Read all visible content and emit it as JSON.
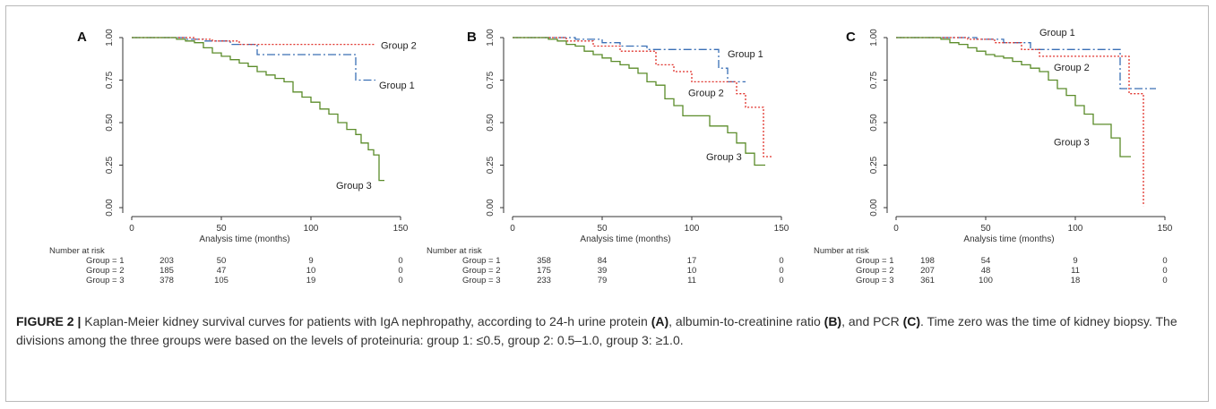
{
  "colors": {
    "group1": "#3a6fb5",
    "group2": "#e0322b",
    "group3": "#5b8c2a",
    "axis": "#333333",
    "frame": "#b9b9b9"
  },
  "chart_data": [
    {
      "type": "line",
      "panel": "A",
      "xlabel": "Analysis time (months)",
      "ylabel": "",
      "xlim": [
        0,
        150
      ],
      "ylim": [
        0,
        1
      ],
      "x_ticks": [
        "0",
        "50",
        "100",
        "150"
      ],
      "y_ticks": [
        "0.00",
        "0.25",
        "0.50",
        "0.75",
        "1.00"
      ],
      "series": [
        {
          "name": "Group 1",
          "style": "dashdot",
          "steps": [
            [
              0,
              1
            ],
            [
              20,
              1
            ],
            [
              30,
              0.99
            ],
            [
              40,
              0.98
            ],
            [
              55,
              0.96
            ],
            [
              70,
              0.9
            ],
            [
              125,
              0.75
            ],
            [
              136,
              0.75
            ]
          ]
        },
        {
          "name": "Group 2",
          "style": "dotted",
          "steps": [
            [
              0,
              1
            ],
            [
              25,
              1
            ],
            [
              35,
              0.99
            ],
            [
              45,
              0.98
            ],
            [
              60,
              0.96
            ],
            [
              136,
              0.96
            ]
          ]
        },
        {
          "name": "Group 3",
          "style": "solid",
          "steps": [
            [
              0,
              1
            ],
            [
              20,
              1
            ],
            [
              25,
              0.99
            ],
            [
              30,
              0.98
            ],
            [
              35,
              0.97
            ],
            [
              40,
              0.94
            ],
            [
              45,
              0.91
            ],
            [
              50,
              0.89
            ],
            [
              55,
              0.87
            ],
            [
              60,
              0.85
            ],
            [
              65,
              0.83
            ],
            [
              70,
              0.8
            ],
            [
              75,
              0.78
            ],
            [
              80,
              0.76
            ],
            [
              85,
              0.74
            ],
            [
              90,
              0.68
            ],
            [
              95,
              0.65
            ],
            [
              100,
              0.62
            ],
            [
              105,
              0.58
            ],
            [
              110,
              0.55
            ],
            [
              115,
              0.5
            ],
            [
              120,
              0.46
            ],
            [
              125,
              0.43
            ],
            [
              128,
              0.38
            ],
            [
              132,
              0.34
            ],
            [
              135,
              0.31
            ],
            [
              138,
              0.16
            ],
            [
              141,
              0.16
            ]
          ]
        }
      ],
      "curve_labels": [
        {
          "text": "Group 2",
          "x": 139,
          "y": 0.935
        },
        {
          "text": "Group 1",
          "x": 138,
          "y": 0.7
        },
        {
          "text": "Group 3",
          "x": 114,
          "y": 0.11
        }
      ],
      "risk_table": {
        "title": "Number at risk",
        "rows": [
          {
            "label": "Group = 1",
            "values": [
              "203",
              "50",
              "9",
              "0"
            ]
          },
          {
            "label": "Group = 2",
            "values": [
              "185",
              "47",
              "10",
              "0"
            ]
          },
          {
            "label": "Group = 3",
            "values": [
              "378",
              "105",
              "19",
              "0"
            ]
          }
        ]
      }
    },
    {
      "type": "line",
      "panel": "B",
      "xlabel": "Analysis time (months)",
      "ylabel": "",
      "xlim": [
        0,
        150
      ],
      "ylim": [
        0,
        1
      ],
      "x_ticks": [
        "0",
        "50",
        "100",
        "150"
      ],
      "y_ticks": [
        "0.00",
        "0.25",
        "0.50",
        "0.75",
        "1.00"
      ],
      "series": [
        {
          "name": "Group 1",
          "style": "dashdot",
          "steps": [
            [
              0,
              1
            ],
            [
              20,
              1
            ],
            [
              35,
              0.99
            ],
            [
              50,
              0.97
            ],
            [
              60,
              0.95
            ],
            [
              75,
              0.93
            ],
            [
              115,
              0.82
            ],
            [
              120,
              0.74
            ],
            [
              130,
              0.74
            ]
          ]
        },
        {
          "name": "Group 2",
          "style": "dotted",
          "steps": [
            [
              0,
              1
            ],
            [
              15,
              1
            ],
            [
              30,
              0.98
            ],
            [
              45,
              0.95
            ],
            [
              60,
              0.92
            ],
            [
              80,
              0.84
            ],
            [
              90,
              0.8
            ],
            [
              100,
              0.74
            ],
            [
              125,
              0.67
            ],
            [
              130,
              0.59
            ],
            [
              140,
              0.3
            ],
            [
              145,
              0.3
            ]
          ]
        },
        {
          "name": "Group 3",
          "style": "solid",
          "steps": [
            [
              0,
              1
            ],
            [
              15,
              1
            ],
            [
              20,
              0.99
            ],
            [
              25,
              0.98
            ],
            [
              30,
              0.96
            ],
            [
              35,
              0.95
            ],
            [
              40,
              0.92
            ],
            [
              45,
              0.9
            ],
            [
              50,
              0.88
            ],
            [
              55,
              0.86
            ],
            [
              60,
              0.84
            ],
            [
              65,
              0.82
            ],
            [
              70,
              0.79
            ],
            [
              75,
              0.74
            ],
            [
              80,
              0.72
            ],
            [
              85,
              0.64
            ],
            [
              90,
              0.6
            ],
            [
              95,
              0.54
            ],
            [
              110,
              0.48
            ],
            [
              120,
              0.44
            ],
            [
              125,
              0.38
            ],
            [
              130,
              0.32
            ],
            [
              135,
              0.25
            ],
            [
              141,
              0.25
            ]
          ]
        }
      ],
      "curve_labels": [
        {
          "text": "Group 1",
          "x": 120,
          "y": 0.885
        },
        {
          "text": "Group 2",
          "x": 98,
          "y": 0.655
        },
        {
          "text": "Group 3",
          "x": 108,
          "y": 0.28
        }
      ],
      "risk_table": {
        "title": "Number at risk",
        "rows": [
          {
            "label": "Group = 1",
            "values": [
              "358",
              "84",
              "17",
              "0"
            ]
          },
          {
            "label": "Group = 2",
            "values": [
              "175",
              "39",
              "10",
              "0"
            ]
          },
          {
            "label": "Group = 3",
            "values": [
              "233",
              "79",
              "11",
              "0"
            ]
          }
        ]
      }
    },
    {
      "type": "line",
      "panel": "C",
      "xlabel": "Analysis time (months)",
      "ylabel": "",
      "xlim": [
        0,
        150
      ],
      "ylim": [
        0,
        1
      ],
      "x_ticks": [
        "0",
        "50",
        "100",
        "150"
      ],
      "y_ticks": [
        "0.00",
        "0.25",
        "0.50",
        "0.75",
        "1.00"
      ],
      "series": [
        {
          "name": "Group 1",
          "style": "dashdot",
          "steps": [
            [
              0,
              1
            ],
            [
              25,
              1
            ],
            [
              45,
              0.99
            ],
            [
              60,
              0.97
            ],
            [
              75,
              0.93
            ],
            [
              125,
              0.7
            ],
            [
              145,
              0.7
            ]
          ]
        },
        {
          "name": "Group 2",
          "style": "dotted",
          "steps": [
            [
              0,
              1
            ],
            [
              25,
              1
            ],
            [
              40,
              0.99
            ],
            [
              55,
              0.97
            ],
            [
              70,
              0.93
            ],
            [
              80,
              0.89
            ],
            [
              90,
              0.89
            ],
            [
              125,
              0.89
            ],
            [
              130,
              0.67
            ],
            [
              135,
              0.67
            ],
            [
              138,
              0.01
            ]
          ]
        },
        {
          "name": "Group 3",
          "style": "solid",
          "steps": [
            [
              0,
              1
            ],
            [
              15,
              1
            ],
            [
              25,
              0.99
            ],
            [
              30,
              0.97
            ],
            [
              35,
              0.96
            ],
            [
              40,
              0.94
            ],
            [
              45,
              0.92
            ],
            [
              50,
              0.9
            ],
            [
              55,
              0.89
            ],
            [
              60,
              0.88
            ],
            [
              65,
              0.86
            ],
            [
              70,
              0.84
            ],
            [
              75,
              0.82
            ],
            [
              80,
              0.8
            ],
            [
              85,
              0.75
            ],
            [
              90,
              0.7
            ],
            [
              95,
              0.66
            ],
            [
              100,
              0.6
            ],
            [
              105,
              0.55
            ],
            [
              110,
              0.49
            ],
            [
              120,
              0.41
            ],
            [
              125,
              0.3
            ],
            [
              131,
              0.3
            ]
          ]
        }
      ],
      "curve_labels": [
        {
          "text": "Group 1",
          "x": 80,
          "y": 1.01
        },
        {
          "text": "Group 2",
          "x": 88,
          "y": 0.805
        },
        {
          "text": "Group 3",
          "x": 88,
          "y": 0.365
        }
      ],
      "risk_table": {
        "title": "Number at risk",
        "rows": [
          {
            "label": "Group = 1",
            "values": [
              "198",
              "54",
              "9",
              "0"
            ]
          },
          {
            "label": "Group = 2",
            "values": [
              "207",
              "48",
              "11",
              "0"
            ]
          },
          {
            "label": "Group = 3",
            "values": [
              "361",
              "100",
              "18",
              "0"
            ]
          }
        ]
      }
    }
  ],
  "caption": {
    "figure_label": "FIGURE 2 |",
    "text_1": " Kaplan-Meier kidney survival curves for patients with IgA nephropathy, according to 24-h urine protein ",
    "ref_a": "(A)",
    "text_2": ", albumin-to-creatinine ratio ",
    "ref_b": "(B)",
    "text_3": ", and PCR ",
    "ref_c": "(C)",
    "text_4": ". Time zero was the time of kidney biopsy. The divisions among the three groups were based on the levels of proteinuria: group 1: ≤0.5, group 2: 0.5–1.0, group 3: ≥1.0."
  }
}
